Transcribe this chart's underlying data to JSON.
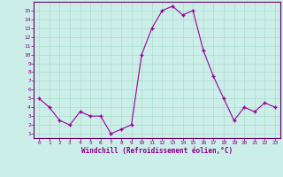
{
  "x": [
    0,
    1,
    2,
    3,
    4,
    5,
    6,
    7,
    8,
    9,
    10,
    11,
    12,
    13,
    14,
    15,
    16,
    17,
    18,
    19,
    20,
    21,
    22,
    23
  ],
  "y": [
    5.0,
    4.0,
    2.5,
    2.0,
    3.5,
    3.0,
    3.0,
    1.0,
    1.5,
    2.0,
    10.0,
    13.0,
    15.0,
    15.5,
    14.5,
    15.0,
    10.5,
    7.5,
    5.0,
    2.5,
    4.0,
    3.5,
    4.5,
    4.0
  ],
  "line_color": "#990099",
  "marker_color": "#990099",
  "bg_color": "#cceee8",
  "grid_color": "#aaddcc",
  "xlabel": "Windchill (Refroidissement éolien,°C)",
  "ylabel_ticks": [
    1,
    2,
    3,
    4,
    5,
    6,
    7,
    8,
    9,
    10,
    11,
    12,
    13,
    14,
    15
  ],
  "xlim": [
    -0.5,
    23.5
  ],
  "ylim": [
    0.5,
    16.0
  ],
  "tick_color": "#880088",
  "axis_label_color": "#880088",
  "spine_color": "#660066"
}
